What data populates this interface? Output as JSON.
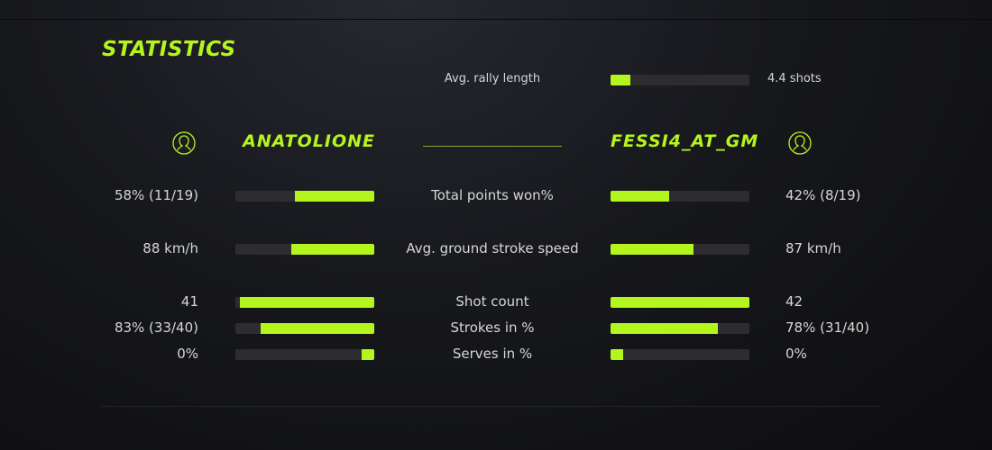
{
  "title": "STATISTICS",
  "colors": {
    "accent": "#b5f51e",
    "track": "#2e2c2e"
  },
  "rally": {
    "label": "Avg. rally length",
    "value": "4.4 shots",
    "fraction": 0.14
  },
  "players": {
    "left": {
      "name": "ANATOLIONE",
      "icon": "user-icon"
    },
    "right": {
      "name": "FESSI4_AT_GM",
      "icon": "user-icon"
    }
  },
  "stats": [
    {
      "label": "Total points won%",
      "left": "58% (11/19)",
      "right": "42% (8/19)",
      "left_fraction": 0.57,
      "right_fraction": 0.42
    },
    {
      "label": "Avg. ground stroke speed",
      "left": "88 km/h",
      "right": "87 km/h",
      "left_fraction": 0.6,
      "right_fraction": 0.6
    },
    {
      "label": "Shot count",
      "left": "41",
      "right": "42",
      "left_fraction": 0.97,
      "right_fraction": 1.0
    },
    {
      "label": "Strokes in %",
      "left": "83% (33/40)",
      "right": "78% (31/40)",
      "left_fraction": 0.82,
      "right_fraction": 0.77
    },
    {
      "label": "Serves in %",
      "left": "0%",
      "right": "0%",
      "left_fraction": 0.09,
      "right_fraction": 0.09
    }
  ]
}
